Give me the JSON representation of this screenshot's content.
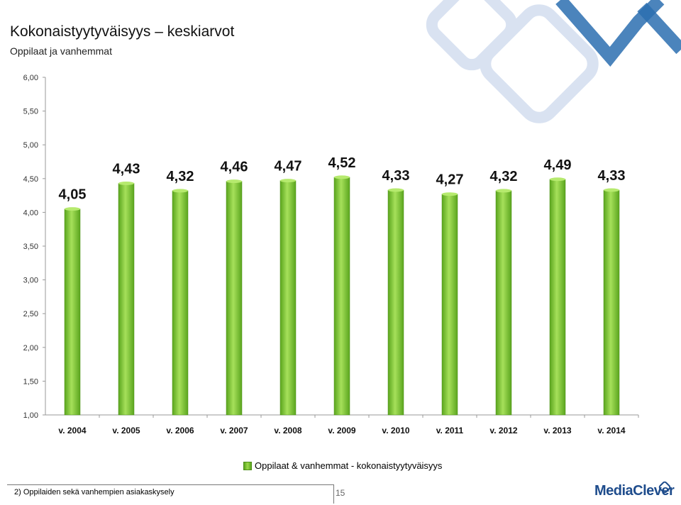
{
  "header": {
    "title": "Kokonaistyytyväisyys – keskiarvot",
    "subtitle": "Oppilaat ja vanhemmat"
  },
  "chart_data": {
    "type": "bar",
    "categories": [
      "v. 2004",
      "v. 2005",
      "v. 2006",
      "v. 2007",
      "v. 2008",
      "v. 2009",
      "v. 2010",
      "v. 2011",
      "v. 2012",
      "v. 2013",
      "v. 2014"
    ],
    "series": [
      {
        "name": "Oppilaat & vanhemmat - kokonaistyytyväisyys",
        "values": [
          4.05,
          4.43,
          4.32,
          4.46,
          4.47,
          4.52,
          4.33,
          4.27,
          4.32,
          4.49,
          4.33
        ],
        "labels": [
          "4,05",
          "4,43",
          "4,32",
          "4,46",
          "4,47",
          "4,52",
          "4,33",
          "4,27",
          "4,32",
          "4,49",
          "4,33"
        ],
        "color": "#8fd13f"
      }
    ],
    "ylim": [
      1.0,
      6.0
    ],
    "yticks": [
      1.0,
      1.5,
      2.0,
      2.5,
      3.0,
      3.5,
      4.0,
      4.5,
      5.0,
      5.5,
      6.0
    ],
    "ytick_labels": [
      "1,00",
      "1,50",
      "2,00",
      "2,50",
      "3,00",
      "3,50",
      "4,00",
      "4,50",
      "5,00",
      "5,50",
      "6,00"
    ],
    "grid": false,
    "legend_position": "bottom"
  },
  "legend": {
    "label": "Oppilaat & vanhemmat - kokonaistyytyväisyys"
  },
  "footer": {
    "source": "2) Oppilaiden sekä vanhempien asiakaskysely",
    "page_number": "15",
    "logo": "MediaClever"
  },
  "colors": {
    "bar": "#8fd13f",
    "bar_dark": "#5aa51e",
    "logo": "#1e4c8c",
    "decoration": "#b8c9e3"
  }
}
